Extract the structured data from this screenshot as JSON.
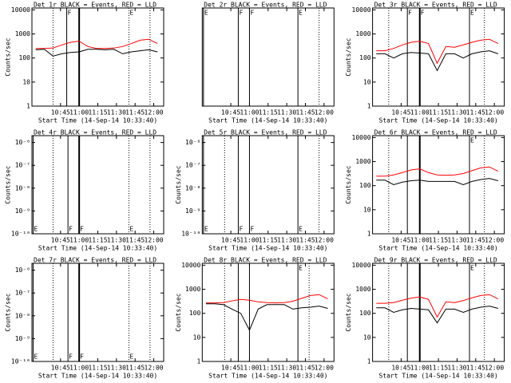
{
  "chart_data": [
    {
      "type": "line",
      "title": "Det 1r BLACK = Events, RED = LLD",
      "xlabel": "Start Time (14-Sep-14 10:33:40)",
      "ylabel": "Counts/sec",
      "log_y": true,
      "ylim": [
        1,
        12000
      ],
      "yticks": [
        1,
        10,
        100,
        1000,
        10000
      ],
      "xlim": [
        622,
        728
      ],
      "xticks": [
        {
          "value": 645,
          "label": "10:45"
        },
        {
          "value": 660,
          "label": "11:00"
        },
        {
          "value": 675,
          "label": "11:15"
        },
        {
          "value": 690,
          "label": "11:30"
        },
        {
          "value": 705,
          "label": "11:45"
        },
        {
          "value": 720,
          "label": "12:00"
        }
      ],
      "x": [
        625,
        632,
        639,
        646,
        653,
        660,
        667,
        674,
        681,
        688,
        695,
        702,
        709,
        716,
        723
      ],
      "series": [
        {
          "name": "LLD",
          "color": "#ff0000",
          "values": [
            250,
            250,
            260,
            350,
            450,
            500,
            300,
            250,
            250,
            260,
            300,
            400,
            550,
            600,
            400
          ]
        },
        {
          "name": "Events",
          "color": "#000000",
          "values": [
            220,
            230,
            120,
            150,
            170,
            180,
            230,
            230,
            220,
            230,
            150,
            180,
            200,
            220,
            180
          ]
        }
      ],
      "marker_label_position": "top",
      "markers": [
        {
          "x": 639,
          "style": "dotted"
        },
        {
          "x": 650,
          "style": "solid",
          "label": "F"
        },
        {
          "x": 660,
          "style": "thick"
        },
        {
          "x": 700,
          "style": "dotted",
          "label": "E"
        },
        {
          "x": 717,
          "style": "dotted"
        }
      ]
    },
    {
      "type": "line",
      "title": "Det 2r BLACK = Events, RED = LLD",
      "xlabel": "Start Time (14-Sep-14 10:33:40)",
      "log_y": true,
      "ylim": [
        1,
        12000
      ],
      "yticks": [],
      "xlim": [
        622,
        728
      ],
      "xticks": [
        {
          "value": 645,
          "label": "10:45"
        },
        {
          "value": 660,
          "label": "11:00"
        },
        {
          "value": 675,
          "label": "11:15"
        },
        {
          "value": 690,
          "label": "11:30"
        },
        {
          "value": 705,
          "label": "11:45"
        },
        {
          "value": 720,
          "label": "12:00"
        }
      ],
      "series": [],
      "marker_label_position": "top",
      "markers": [
        {
          "x": 623,
          "style": "solid",
          "label": "E"
        },
        {
          "x": 651,
          "style": "solid",
          "label": "F"
        },
        {
          "x": 660,
          "style": "solid",
          "label": "F"
        },
        {
          "x": 699,
          "style": "solid",
          "label": "E"
        },
        {
          "x": 716,
          "style": "dotted"
        }
      ]
    },
    {
      "type": "line",
      "title": "Det 3r BLACK = Events, RED = LLD",
      "xlabel": "Start Time (14-Sep-14 10:33:40)",
      "ylabel": "Counts/sec",
      "log_y": true,
      "ylim": [
        1,
        12000
      ],
      "yticks": [
        1,
        10,
        100,
        1000,
        10000
      ],
      "xlim": [
        622,
        728
      ],
      "xticks": [
        {
          "value": 645,
          "label": "10:45"
        },
        {
          "value": 660,
          "label": "11:00"
        },
        {
          "value": 675,
          "label": "11:15"
        },
        {
          "value": 690,
          "label": "11:30"
        },
        {
          "value": 705,
          "label": "11:45"
        },
        {
          "value": 720,
          "label": "12:00"
        }
      ],
      "x": [
        625,
        632,
        639,
        646,
        653,
        660,
        667,
        674,
        681,
        688,
        695,
        702,
        709,
        716,
        723
      ],
      "series": [
        {
          "name": "LLD",
          "color": "#ff0000",
          "values": [
            200,
            200,
            250,
            350,
            450,
            500,
            400,
            60,
            300,
            280,
            350,
            450,
            550,
            600,
            400
          ]
        },
        {
          "name": "Events",
          "color": "#000000",
          "values": [
            150,
            150,
            100,
            150,
            170,
            160,
            150,
            30,
            150,
            150,
            100,
            150,
            180,
            200,
            150
          ]
        }
      ],
      "marker_label_position": "top",
      "markers": [
        {
          "x": 635,
          "style": "dotted"
        },
        {
          "x": 650,
          "style": "solid",
          "label": "F"
        },
        {
          "x": 660,
          "style": "thick",
          "label": "F"
        },
        {
          "x": 700,
          "style": "solid",
          "label": "E"
        },
        {
          "x": 712,
          "style": "dotted"
        }
      ]
    },
    {
      "type": "line",
      "title": "Det 4r BLACK = Events, RED = LLD",
      "xlabel": "Start Time (14-Sep-14 10:33:40)",
      "ylabel": "Counts/sec",
      "log_y": true,
      "ylim": [
        1e-10,
        2e-06
      ],
      "yticks": [
        {
          "value": 1e-10,
          "label": "10⁻¹⁰"
        },
        {
          "value": 1e-09,
          "label": "10⁻⁹"
        },
        {
          "value": 1e-08,
          "label": "10⁻⁸"
        },
        {
          "value": 1e-07,
          "label": "10⁻⁷"
        },
        {
          "value": 1e-06,
          "label": "10⁻⁶"
        }
      ],
      "xlim": [
        622,
        728
      ],
      "xticks": [
        {
          "value": 645,
          "label": "10:45"
        },
        {
          "value": 660,
          "label": "11:00"
        },
        {
          "value": 675,
          "label": "11:15"
        },
        {
          "value": 690,
          "label": "11:30"
        },
        {
          "value": 705,
          "label": "11:45"
        },
        {
          "value": 720,
          "label": "12:00"
        }
      ],
      "series": [],
      "marker_label_position": "bottom",
      "markers": [
        {
          "x": 623,
          "style": "solid",
          "label": "E"
        },
        {
          "x": 639,
          "style": "dotted"
        },
        {
          "x": 651,
          "style": "solid",
          "label": "F"
        },
        {
          "x": 660,
          "style": "thick",
          "label": "F"
        },
        {
          "x": 700,
          "style": "dotted",
          "label": "E"
        },
        {
          "x": 717,
          "style": "dotted"
        }
      ]
    },
    {
      "type": "line",
      "title": "Det 5r BLACK = Events, RED = LLD",
      "xlabel": "Start Time (14-Sep-14 10:33:40)",
      "ylabel": "Counts/sec",
      "log_y": true,
      "ylim": [
        1e-10,
        2e-06
      ],
      "yticks": [
        {
          "value": 1e-10,
          "label": "10⁻¹⁰"
        },
        {
          "value": 1e-09,
          "label": "10⁻⁹"
        },
        {
          "value": 1e-08,
          "label": "10⁻⁸"
        },
        {
          "value": 1e-07,
          "label": "10⁻⁷"
        },
        {
          "value": 1e-06,
          "label": "10⁻⁶"
        }
      ],
      "xlim": [
        622,
        728
      ],
      "xticks": [
        {
          "value": 645,
          "label": "10:45"
        },
        {
          "value": 660,
          "label": "11:00"
        },
        {
          "value": 675,
          "label": "11:15"
        },
        {
          "value": 690,
          "label": "11:30"
        },
        {
          "value": 705,
          "label": "11:45"
        },
        {
          "value": 720,
          "label": "12:00"
        }
      ],
      "series": [],
      "marker_label_position": "bottom",
      "markers": [
        {
          "x": 623,
          "style": "solid",
          "label": "E"
        },
        {
          "x": 640,
          "style": "dotted"
        },
        {
          "x": 651,
          "style": "solid",
          "label": "F"
        },
        {
          "x": 660,
          "style": "solid",
          "label": "F"
        },
        {
          "x": 699,
          "style": "solid",
          "label": "E"
        },
        {
          "x": 716,
          "style": "dotted"
        }
      ]
    },
    {
      "type": "line",
      "title": "Det 6r BLACK = Events, RED = LLD",
      "xlabel": "Start Time (14-Sep-14 10:33:40)",
      "ylabel": "Counts/sec",
      "log_y": true,
      "ylim": [
        1,
        12000
      ],
      "yticks": [
        1,
        10,
        100,
        1000,
        10000
      ],
      "xlim": [
        622,
        728
      ],
      "xticks": [
        {
          "value": 645,
          "label": "10:45"
        },
        {
          "value": 660,
          "label": "11:00"
        },
        {
          "value": 675,
          "label": "11:15"
        },
        {
          "value": 690,
          "label": "11:30"
        },
        {
          "value": 705,
          "label": "11:45"
        },
        {
          "value": 720,
          "label": "12:00"
        }
      ],
      "x": [
        625,
        632,
        639,
        646,
        653,
        660,
        667,
        674,
        681,
        688,
        695,
        702,
        709,
        716,
        723
      ],
      "series": [
        {
          "name": "LLD",
          "color": "#ff0000",
          "values": [
            250,
            250,
            280,
            350,
            450,
            500,
            350,
            280,
            270,
            280,
            320,
            420,
            550,
            600,
            400
          ]
        },
        {
          "name": "Events",
          "color": "#000000",
          "values": [
            170,
            170,
            110,
            140,
            160,
            170,
            150,
            150,
            150,
            150,
            110,
            150,
            180,
            200,
            160
          ]
        }
      ],
      "marker_label_position": "top",
      "markers": [
        {
          "x": 635,
          "style": "dotted"
        },
        {
          "x": 650,
          "style": "solid"
        },
        {
          "x": 660,
          "style": "thick"
        },
        {
          "x": 700,
          "style": "solid",
          "label": "E"
        },
        {
          "x": 712,
          "style": "dotted"
        }
      ]
    },
    {
      "type": "line",
      "title": "Det 7r BLACK = Events, RED = LLD",
      "xlabel": "Start Time (14-Sep-14 10:33:40)",
      "ylabel": "Counts/sec",
      "log_y": true,
      "ylim": [
        1e-10,
        2e-06
      ],
      "yticks": [
        {
          "value": 1e-10,
          "label": "10⁻¹⁰"
        },
        {
          "value": 1e-09,
          "label": "10⁻⁹"
        },
        {
          "value": 1e-08,
          "label": "10⁻⁸"
        },
        {
          "value": 1e-07,
          "label": "10⁻⁷"
        },
        {
          "value": 1e-06,
          "label": "10⁻⁶"
        }
      ],
      "xlim": [
        622,
        728
      ],
      "xticks": [
        {
          "value": 645,
          "label": "10:45"
        },
        {
          "value": 660,
          "label": "11:00"
        },
        {
          "value": 675,
          "label": "11:15"
        },
        {
          "value": 690,
          "label": "11:30"
        },
        {
          "value": 705,
          "label": "11:45"
        },
        {
          "value": 720,
          "label": "12:00"
        }
      ],
      "series": [],
      "marker_label_position": "bottom",
      "markers": [
        {
          "x": 623,
          "style": "solid",
          "label": "E"
        },
        {
          "x": 639,
          "style": "dotted"
        },
        {
          "x": 651,
          "style": "solid",
          "label": "F"
        },
        {
          "x": 660,
          "style": "thick",
          "label": "F"
        },
        {
          "x": 700,
          "style": "dotted",
          "label": "E"
        },
        {
          "x": 717,
          "style": "dotted"
        }
      ]
    },
    {
      "type": "line",
      "title": "Det 8r BLACK = Events, RED = LLD",
      "xlabel": "Start Time (14-Sep-14 10:33:40)",
      "ylabel": "Counts/sec",
      "log_y": true,
      "ylim": [
        1,
        12000
      ],
      "yticks": [
        1,
        10,
        100,
        1000,
        10000
      ],
      "xlim": [
        622,
        728
      ],
      "xticks": [
        {
          "value": 645,
          "label": "10:45"
        },
        {
          "value": 660,
          "label": "11:00"
        },
        {
          "value": 675,
          "label": "11:15"
        },
        {
          "value": 690,
          "label": "11:30"
        },
        {
          "value": 705,
          "label": "11:45"
        },
        {
          "value": 720,
          "label": "12:00"
        }
      ],
      "x": [
        625,
        632,
        639,
        646,
        653,
        660,
        667,
        674,
        681,
        688,
        695,
        702,
        709,
        716,
        723
      ],
      "series": [
        {
          "name": "LLD",
          "color": "#ff0000",
          "values": [
            270,
            270,
            280,
            330,
            380,
            350,
            300,
            280,
            270,
            280,
            320,
            420,
            550,
            600,
            400
          ]
        },
        {
          "name": "Events",
          "color": "#000000",
          "values": [
            250,
            250,
            230,
            150,
            100,
            20,
            150,
            230,
            230,
            230,
            150,
            170,
            180,
            200,
            160
          ]
        }
      ],
      "marker_label_position": "top",
      "markers": [
        {
          "x": 640,
          "style": "dotted"
        },
        {
          "x": 651,
          "style": "solid"
        },
        {
          "x": 660,
          "style": "solid"
        },
        {
          "x": 699,
          "style": "solid",
          "label": "E"
        },
        {
          "x": 708,
          "style": "dotted"
        }
      ]
    },
    {
      "type": "line",
      "title": "Det 9r BLACK = Events, RED = LLD",
      "xlabel": "Start Time (14-Sep-14 10:33:40)",
      "ylabel": "Counts/sec",
      "log_y": true,
      "ylim": [
        1,
        12000
      ],
      "yticks": [
        1,
        10,
        100,
        1000,
        10000
      ],
      "xlim": [
        622,
        728
      ],
      "xticks": [
        {
          "value": 645,
          "label": "10:45"
        },
        {
          "value": 660,
          "label": "11:00"
        },
        {
          "value": 675,
          "label": "11:15"
        },
        {
          "value": 690,
          "label": "11:30"
        },
        {
          "value": 705,
          "label": "11:45"
        },
        {
          "value": 720,
          "label": "12:00"
        }
      ],
      "x": [
        625,
        632,
        639,
        646,
        653,
        660,
        667,
        674,
        681,
        688,
        695,
        702,
        709,
        716,
        723
      ],
      "series": [
        {
          "name": "LLD",
          "color": "#ff0000",
          "values": [
            260,
            260,
            280,
            350,
            430,
            480,
            380,
            70,
            300,
            280,
            340,
            440,
            550,
            600,
            400
          ]
        },
        {
          "name": "Events",
          "color": "#000000",
          "values": [
            170,
            170,
            110,
            140,
            160,
            150,
            140,
            40,
            150,
            150,
            110,
            150,
            180,
            200,
            160
          ]
        }
      ],
      "marker_label_position": "top",
      "markers": [
        {
          "x": 635,
          "style": "dotted"
        },
        {
          "x": 650,
          "style": "solid"
        },
        {
          "x": 660,
          "style": "thick"
        },
        {
          "x": 700,
          "style": "solid",
          "label": "E"
        },
        {
          "x": 712,
          "style": "dotted"
        }
      ]
    }
  ]
}
